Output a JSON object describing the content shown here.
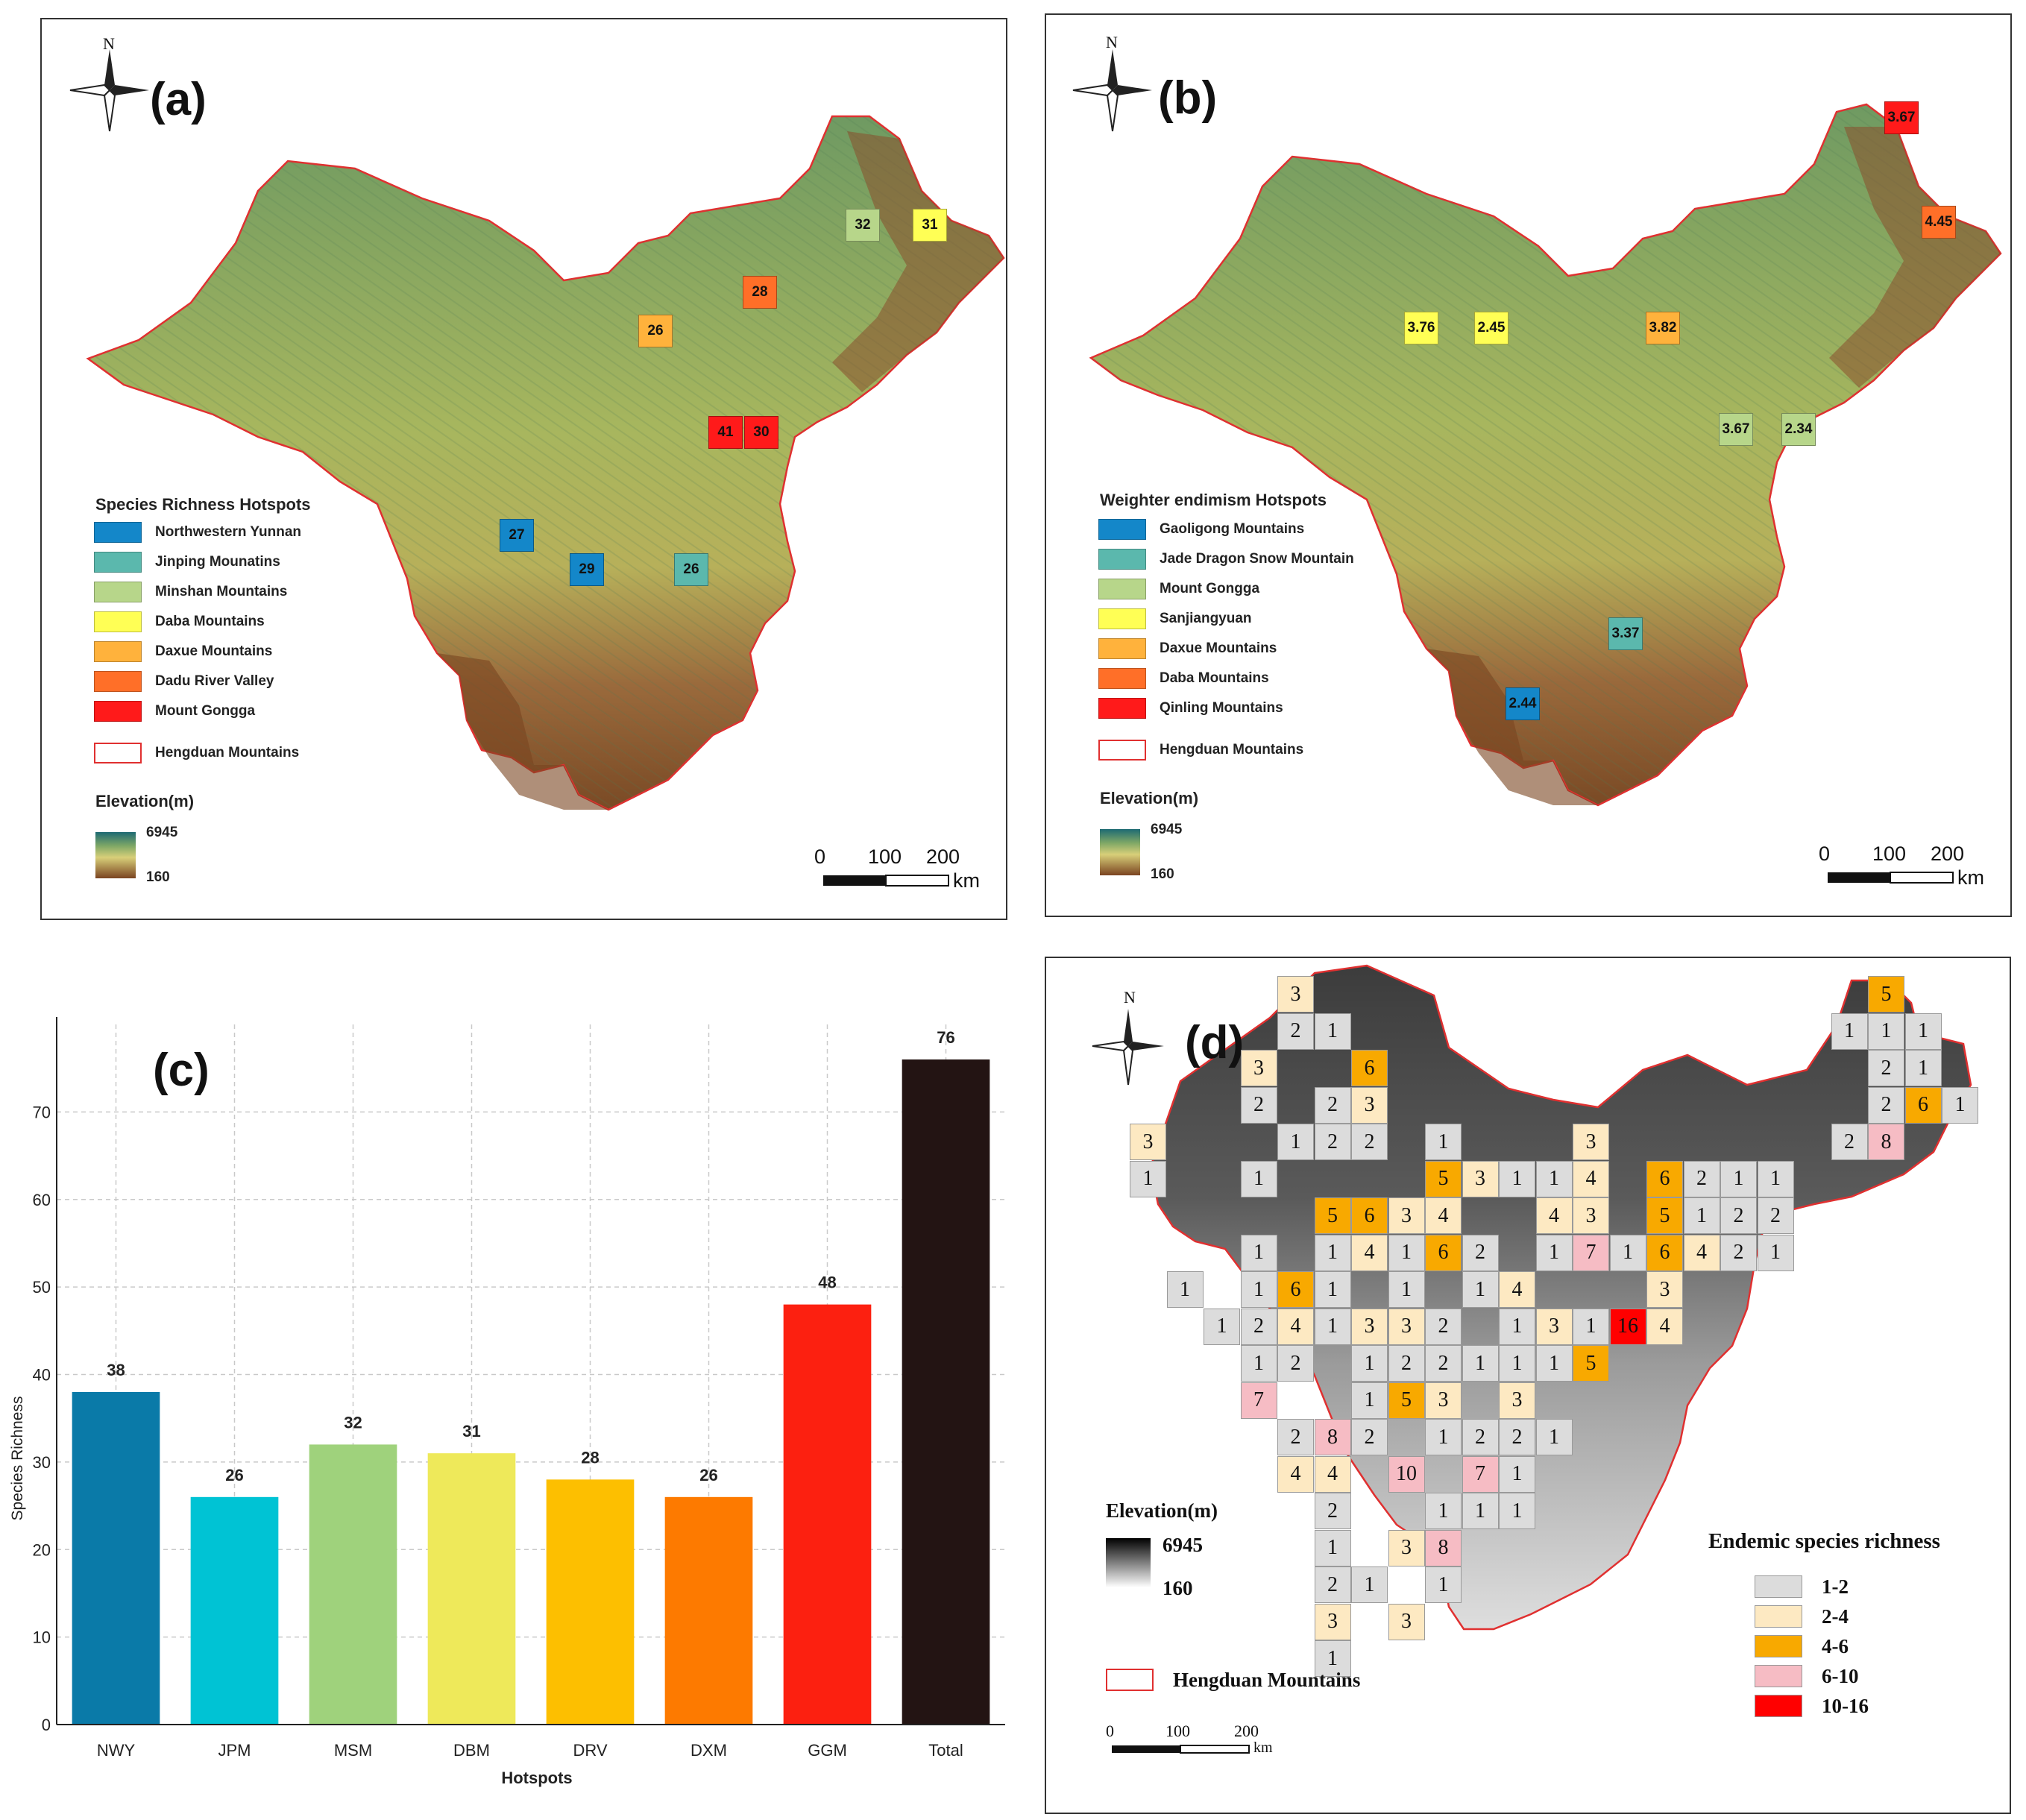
{
  "colors": {
    "northwestern_yunnan": "#1487c9",
    "jinping": "#5bb8ad",
    "minshan": "#b7d68a",
    "daba": "#ffff55",
    "daxue": "#ffb23c",
    "dadu": "#ff6f28",
    "gongga": "#ff1a1a",
    "outline": "#e03030",
    "d_1_2": "#dcdcdc",
    "d_2_4": "#fde9c2",
    "d_4_6": "#f8a900",
    "d_6_10": "#f6bcc4",
    "d_10_16": "#ff0000"
  },
  "compass": {
    "north_label": "N"
  },
  "panel_a": {
    "label": "(a)",
    "hotspots": [
      {
        "value": "32",
        "color": "#b7d68a"
      },
      {
        "value": "31",
        "color": "#ffff55"
      },
      {
        "value": "28",
        "color": "#ff6f28"
      },
      {
        "value": "26",
        "color": "#ffb23c"
      },
      {
        "value": "41",
        "color": "#ff1a1a"
      },
      {
        "value": "30",
        "color": "#ff1a1a"
      },
      {
        "value": "27",
        "color": "#1487c9"
      },
      {
        "value": "29",
        "color": "#1487c9"
      },
      {
        "value": "26",
        "color": "#5bb8ad"
      }
    ],
    "legend_title": "Species Richness  Hotspots",
    "legend_items": [
      {
        "label": "Northwestern Yunnan",
        "color": "#1487c9"
      },
      {
        "label": "Jinping Mounatins",
        "color": "#5bb8ad"
      },
      {
        "label": "Minshan Mountains",
        "color": "#b7d68a"
      },
      {
        "label": "Daba Mountains",
        "color": "#ffff55"
      },
      {
        "label": "Daxue Mountains",
        "color": "#ffb23c"
      },
      {
        "label": "Dadu River Valley",
        "color": "#ff6f28"
      },
      {
        "label": "Mount Gongga",
        "color": "#ff1a1a"
      }
    ],
    "outline_label": "Hengduan Mountains",
    "elevation_title": "Elevation(m)",
    "elevation_max": "6945",
    "elevation_min": "160",
    "scale": {
      "t0": "0",
      "t1": "100",
      "t2": "200",
      "unit": "km"
    }
  },
  "panel_b": {
    "label": "(b)",
    "hotspots": [
      {
        "value": "3.67",
        "color": "#ff1a1a"
      },
      {
        "value": "4.45",
        "color": "#ff6f28"
      },
      {
        "value": "3.76",
        "color": "#ffff55"
      },
      {
        "value": "2.45",
        "color": "#ffff55"
      },
      {
        "value": "3.82",
        "color": "#ffb23c"
      },
      {
        "value": "3.67",
        "color": "#b7d68a"
      },
      {
        "value": "2.34",
        "color": "#b7d68a"
      },
      {
        "value": "3.37",
        "color": "#5bb8ad"
      },
      {
        "value": "2.44",
        "color": "#1487c9"
      }
    ],
    "legend_title": "Weighter endimism Hotspots",
    "legend_items": [
      {
        "label": "Gaoligong Mountains",
        "color": "#1487c9"
      },
      {
        "label": "Jade Dragon Snow Mountain",
        "color": "#5bb8ad"
      },
      {
        "label": "Mount Gongga",
        "color": "#b7d68a"
      },
      {
        "label": "Sanjiangyuan",
        "color": "#ffff55"
      },
      {
        "label": "Daxue Mountains",
        "color": "#ffb23c"
      },
      {
        "label": "Daba Mountains",
        "color": "#ff6f28"
      },
      {
        "label": "Qinling Mountains",
        "color": "#ff1a1a"
      }
    ],
    "outline_label": "Hengduan Mountains",
    "elevation_title": "Elevation(m)",
    "elevation_max": "6945",
    "elevation_min": "160",
    "scale": {
      "t0": "0",
      "t1": "100",
      "t2": "200",
      "unit": "km"
    }
  },
  "chart_data": {
    "type": "bar",
    "label": "(c)",
    "categories": [
      "NWY",
      "JPM",
      "MSM",
      "DBM",
      "DRV",
      "DXM",
      "GGM",
      "Total"
    ],
    "values": [
      38,
      26,
      32,
      31,
      28,
      26,
      48,
      76
    ],
    "colors": [
      "#0a7aa8",
      "#00c3d4",
      "#9fd27c",
      "#eee95a",
      "#fdbf00",
      "#fd7a00",
      "#fc2010",
      "#231413"
    ],
    "xlabel": "Hotspots",
    "ylabel": "Species Richness",
    "ylim": [
      0,
      80
    ],
    "yticks": [
      "0",
      "10",
      "20",
      "30",
      "40",
      "50",
      "60",
      "70"
    ],
    "grid": true
  },
  "panel_d": {
    "label": "(d)",
    "grid_rows": [
      {
        "cells": [
          null,
          null,
          null,
          null,
          "3",
          null,
          null,
          null,
          null,
          null,
          null,
          null,
          null,
          null,
          null,
          null,
          null,
          null,
          null,
          null,
          "5",
          null,
          null
        ]
      },
      {
        "cells": [
          null,
          null,
          null,
          null,
          "2",
          "1",
          null,
          null,
          null,
          null,
          null,
          null,
          null,
          null,
          null,
          null,
          null,
          null,
          null,
          "1",
          "1",
          "1",
          null
        ]
      },
      {
        "cells": [
          null,
          null,
          null,
          "3",
          null,
          null,
          "6",
          null,
          null,
          null,
          null,
          null,
          null,
          null,
          null,
          null,
          null,
          null,
          null,
          null,
          "2",
          "1",
          null
        ]
      },
      {
        "cells": [
          null,
          null,
          null,
          "2",
          null,
          "2",
          "3",
          null,
          null,
          null,
          null,
          null,
          null,
          null,
          null,
          null,
          null,
          null,
          null,
          null,
          "2",
          "6",
          "1"
        ]
      },
      {
        "cells": [
          "3",
          null,
          null,
          null,
          "1",
          "2",
          "2",
          null,
          "1",
          null,
          null,
          null,
          "3",
          null,
          null,
          null,
          null,
          null,
          null,
          "2",
          "8",
          null,
          null
        ]
      },
      {
        "cells": [
          "1",
          null,
          null,
          "1",
          null,
          null,
          null,
          null,
          "5",
          "3",
          "1",
          "1",
          "4",
          null,
          "6",
          "2",
          "1",
          "1",
          null,
          null,
          null,
          null,
          null
        ]
      },
      {
        "cells": [
          null,
          null,
          null,
          null,
          null,
          "5",
          "6",
          "3",
          "4",
          null,
          null,
          "4",
          "3",
          null,
          "5",
          "1",
          "2",
          "2",
          null,
          null,
          null,
          null,
          null
        ]
      },
      {
        "cells": [
          null,
          null,
          null,
          "1",
          null,
          "1",
          "4",
          "1",
          "6",
          "2",
          null,
          "1",
          "7",
          "1",
          "6",
          "4",
          "2",
          "1",
          null,
          null,
          null,
          null,
          null
        ]
      },
      {
        "cells": [
          null,
          "1",
          null,
          "1",
          "6",
          "1",
          null,
          "1",
          null,
          "1",
          "4",
          null,
          null,
          null,
          "3",
          null,
          null,
          null,
          null,
          null,
          null,
          null,
          null
        ]
      },
      {
        "cells": [
          null,
          null,
          "1",
          "2",
          "4",
          "1",
          "3",
          "3",
          "2",
          null,
          "1",
          "3",
          "1",
          "16",
          "4",
          null,
          null,
          null,
          null,
          null,
          null,
          null,
          null
        ]
      },
      {
        "cells": [
          null,
          null,
          null,
          "1",
          "2",
          null,
          "1",
          "2",
          "2",
          "1",
          "1",
          "1",
          "5",
          null,
          null,
          null,
          null,
          null,
          null,
          null,
          null,
          null,
          null
        ]
      },
      {
        "cells": [
          null,
          null,
          null,
          "7",
          null,
          null,
          "1",
          "5",
          "3",
          null,
          "3",
          null,
          null,
          null,
          null,
          null,
          null,
          null,
          null,
          null,
          null,
          null,
          null
        ]
      },
      {
        "cells": [
          null,
          null,
          null,
          null,
          "2",
          "8",
          "2",
          null,
          "1",
          "2",
          "2",
          "1",
          null,
          null,
          null,
          null,
          null,
          null,
          null,
          null,
          null,
          null,
          null
        ]
      },
      {
        "cells": [
          null,
          null,
          null,
          null,
          "4",
          "4",
          null,
          "10",
          null,
          "7",
          "1",
          null,
          null,
          null,
          null,
          null,
          null,
          null,
          null,
          null,
          null,
          null,
          null
        ]
      },
      {
        "cells": [
          null,
          null,
          null,
          null,
          null,
          "2",
          null,
          null,
          "1",
          "1",
          "1",
          null,
          null,
          null,
          null,
          null,
          null,
          null,
          null,
          null,
          null,
          null,
          null
        ]
      },
      {
        "cells": [
          null,
          null,
          null,
          null,
          null,
          "1",
          null,
          "3",
          "8",
          null,
          null,
          null,
          null,
          null,
          null,
          null,
          null,
          null,
          null,
          null,
          null,
          null,
          null
        ]
      },
      {
        "cells": [
          null,
          null,
          null,
          null,
          null,
          "2",
          "1",
          null,
          "1",
          null,
          null,
          null,
          null,
          null,
          null,
          null,
          null,
          null,
          null,
          null,
          null,
          null,
          null
        ]
      },
      {
        "cells": [
          null,
          null,
          null,
          null,
          null,
          "3",
          null,
          "3",
          null,
          null,
          null,
          null,
          null,
          null,
          null,
          null,
          null,
          null,
          null,
          null,
          null,
          null,
          null
        ]
      },
      {
        "cells": [
          null,
          null,
          null,
          null,
          null,
          "1",
          null,
          null,
          null,
          null,
          null,
          null,
          null,
          null,
          null,
          null,
          null,
          null,
          null,
          null,
          null,
          null,
          null
        ]
      }
    ],
    "elevation_title": "Elevation(m)",
    "elevation_max": "6945",
    "elevation_min": "160",
    "outline_label": "Hengduan Mountains",
    "legend_title": "Endemic species richness",
    "legend_items": [
      {
        "label": "1-2",
        "color": "#dcdcdc"
      },
      {
        "label": "2-4",
        "color": "#fde9c2"
      },
      {
        "label": "4-6",
        "color": "#f8a900"
      },
      {
        "label": "6-10",
        "color": "#f6bcc4"
      },
      {
        "label": "10-16",
        "color": "#ff0000"
      }
    ],
    "scale": {
      "t0": "0",
      "t1": "100",
      "t2": "200",
      "unit": "km"
    }
  }
}
